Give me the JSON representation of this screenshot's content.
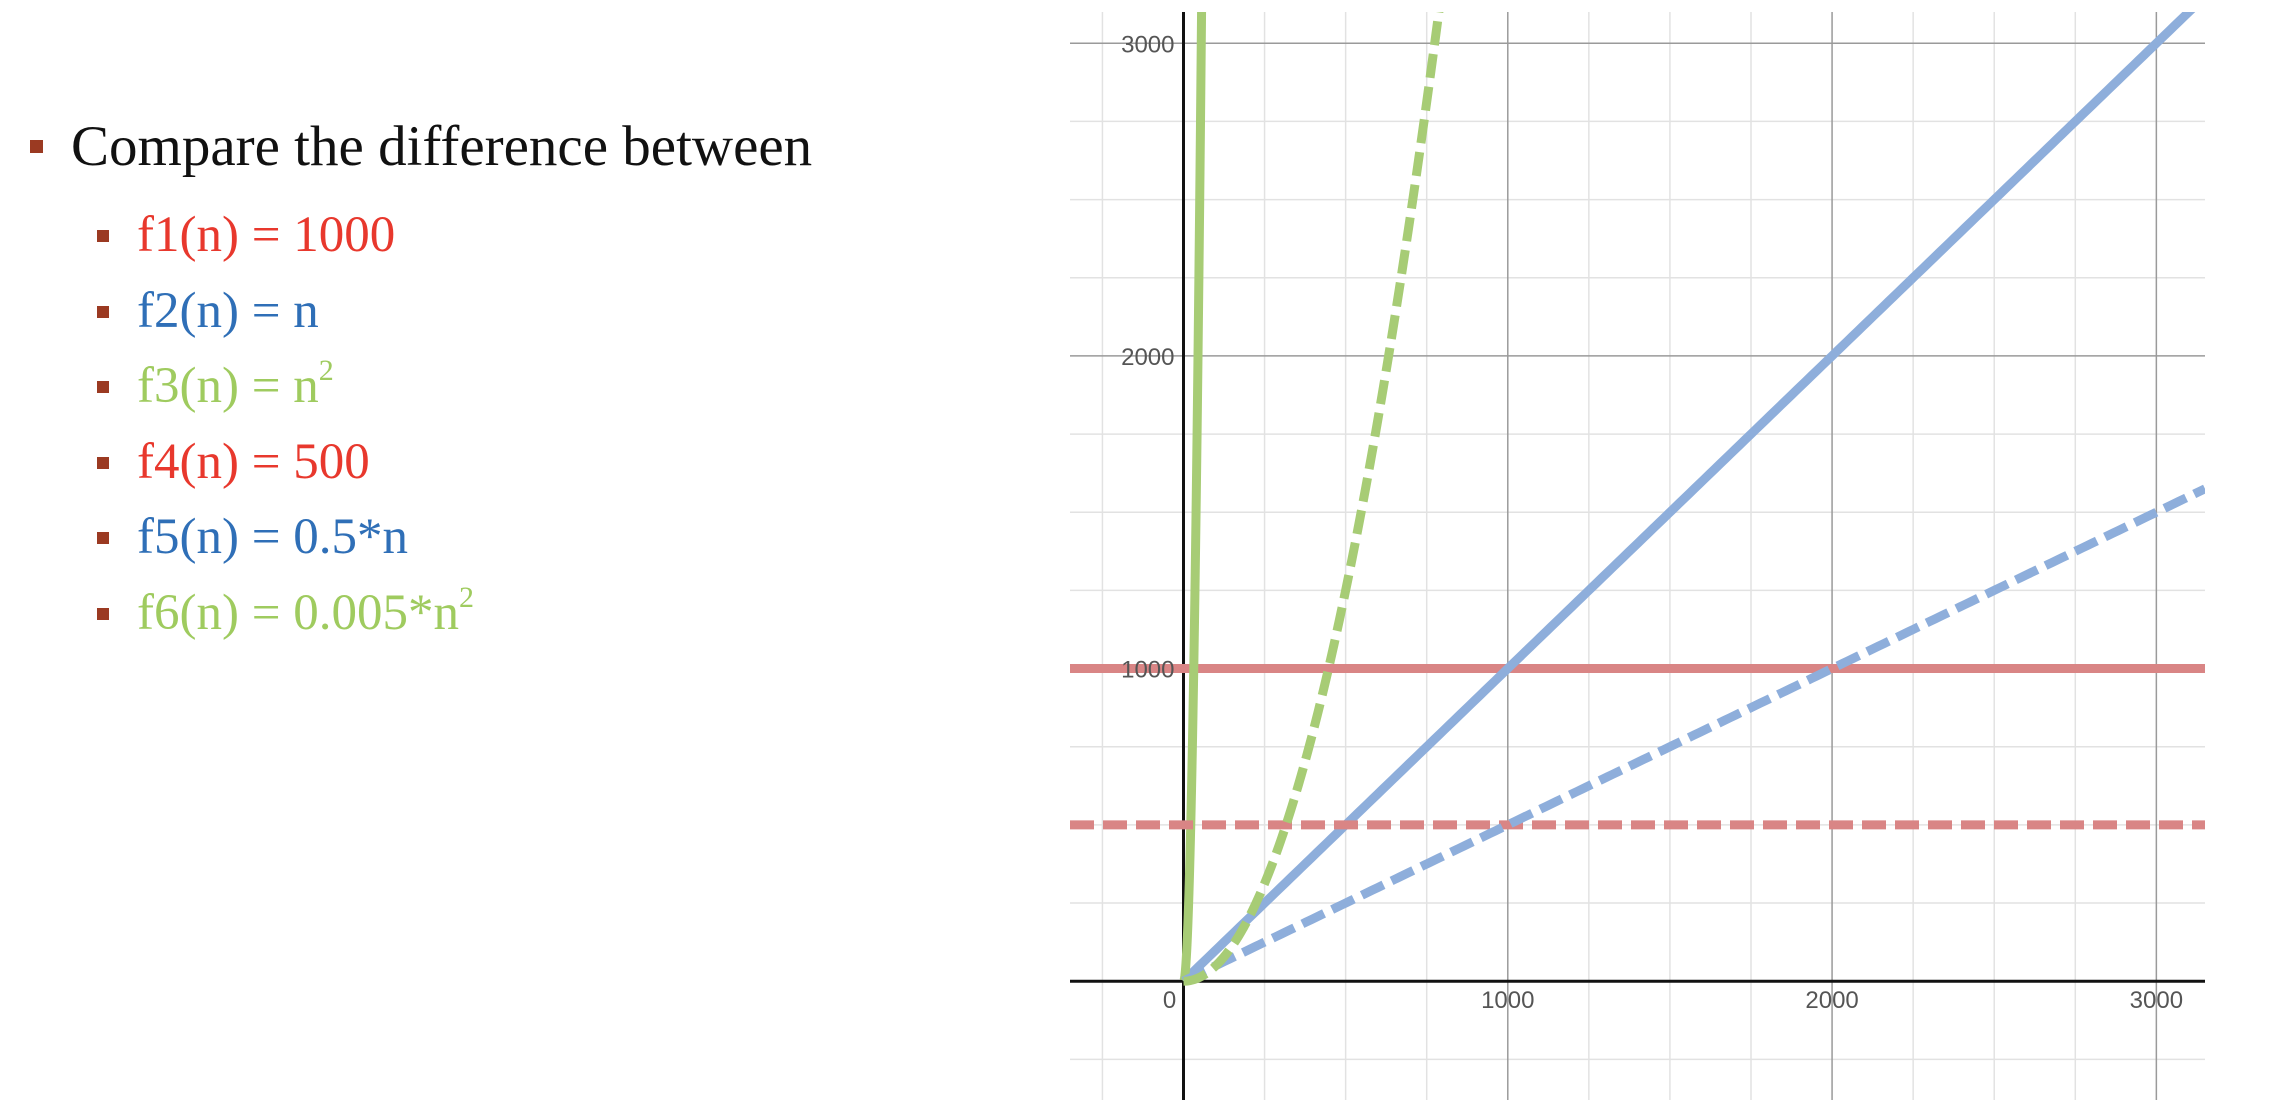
{
  "slide": {
    "heading": "Compare the difference between",
    "bullet_color": "#9b3a22",
    "items": [
      {
        "fn": "f1(n) = ",
        "expr": "1000",
        "sup": "",
        "color": "#e8382d"
      },
      {
        "fn": "f2(n) = ",
        "expr": "n",
        "sup": "",
        "color": "#2f6fb7"
      },
      {
        "fn": "f3(n) = ",
        "expr": "n",
        "sup": "2",
        "color": "#9fcb5f"
      },
      {
        "fn": "f4(n) = ",
        "expr": "500",
        "sup": "",
        "color": "#e8382d"
      },
      {
        "fn": "f5(n) = ",
        "expr": "0.5*n",
        "sup": "",
        "color": "#2f6fb7"
      },
      {
        "fn": "f6(n) = ",
        "expr": "0.005*n",
        "sup": "2",
        "color": "#9fcb5f"
      }
    ]
  },
  "chart_data": {
    "type": "line",
    "xlim": [
      -350,
      3150
    ],
    "ylim": [
      -380,
      3100
    ],
    "grid": true,
    "x_ticks": [
      0,
      1000,
      2000,
      3000
    ],
    "x_tick_labels": [
      "0",
      "1000",
      "2000",
      "3000"
    ],
    "y_ticks": [
      1000,
      2000,
      3000
    ],
    "y_tick_labels": [
      "1000",
      "2000",
      "3000"
    ],
    "series": [
      {
        "func": "constant",
        "a": 1000,
        "color": "#d98585",
        "dash": false
      },
      {
        "func": "linear",
        "a": 1,
        "color": "#8eaedb",
        "dash": false
      },
      {
        "func": "quadratic",
        "a": 1,
        "color": "#a7cc75",
        "dash": false
      },
      {
        "func": "constant",
        "a": 500,
        "color": "#d98585",
        "dash": true
      },
      {
        "func": "linear",
        "a": 0.5,
        "color": "#8eaedb",
        "dash": true
      },
      {
        "func": "quadratic",
        "a": 0.005,
        "color": "#a7cc75",
        "dash": true
      }
    ]
  }
}
